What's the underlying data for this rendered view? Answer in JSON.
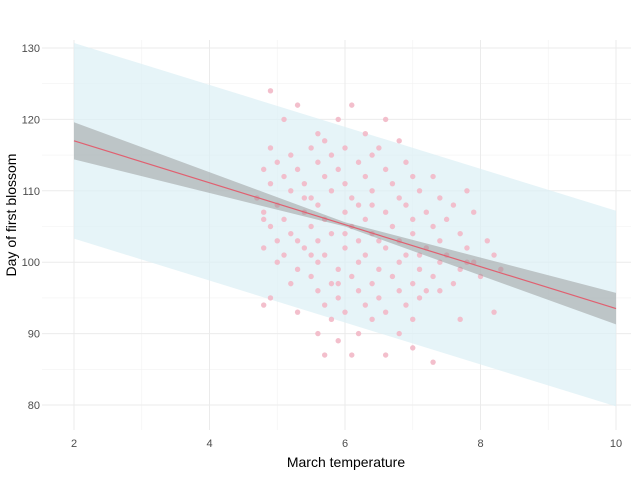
{
  "chart_data": {
    "type": "scatter",
    "title": "",
    "xlabel": "March temperature",
    "ylabel": "Day of first blossom",
    "xlim": [
      2,
      10
    ],
    "ylim": [
      79,
      131
    ],
    "x_ticks": [
      "2",
      "4",
      "6",
      "8",
      "10"
    ],
    "y_ticks": [
      "80",
      "90",
      "100",
      "110",
      "120",
      "130"
    ],
    "grid": true,
    "legend": "none",
    "fit_line": {
      "x": [
        2,
        10
      ],
      "y": [
        117,
        93.5
      ]
    },
    "confidence_band": {
      "x": [
        2,
        6,
        10
      ],
      "lower": [
        114.4,
        105.0,
        91.3
      ],
      "upper": [
        119.6,
        105.6,
        95.7
      ]
    },
    "prediction_band": {
      "x": [
        2,
        10
      ],
      "lower": [
        103.3,
        79.8
      ],
      "upper": [
        130.7,
        107.2
      ]
    },
    "points": [
      [
        4.9,
        124
      ],
      [
        5.3,
        122
      ],
      [
        6.1,
        122
      ],
      [
        5.1,
        120
      ],
      [
        5.9,
        120
      ],
      [
        6.6,
        120
      ],
      [
        5.6,
        118
      ],
      [
        6.3,
        118
      ],
      [
        5.7,
        117
      ],
      [
        6.8,
        117
      ],
      [
        4.9,
        116
      ],
      [
        5.5,
        116
      ],
      [
        6.0,
        116
      ],
      [
        6.5,
        116
      ],
      [
        5.2,
        115
      ],
      [
        5.8,
        115
      ],
      [
        6.4,
        115
      ],
      [
        5.0,
        114
      ],
      [
        5.6,
        114
      ],
      [
        6.2,
        114
      ],
      [
        6.9,
        114
      ],
      [
        4.8,
        113
      ],
      [
        5.3,
        113
      ],
      [
        5.9,
        113
      ],
      [
        6.6,
        113
      ],
      [
        5.1,
        112
      ],
      [
        5.7,
        112
      ],
      [
        6.3,
        112
      ],
      [
        7.0,
        112
      ],
      [
        7.3,
        112
      ],
      [
        4.9,
        111
      ],
      [
        5.4,
        111
      ],
      [
        6.0,
        111
      ],
      [
        6.7,
        111
      ],
      [
        5.2,
        110
      ],
      [
        5.8,
        110
      ],
      [
        6.4,
        110
      ],
      [
        7.1,
        110
      ],
      [
        7.8,
        110
      ],
      [
        4.7,
        109
      ],
      [
        5.5,
        109
      ],
      [
        6.1,
        109
      ],
      [
        6.8,
        109
      ],
      [
        7.4,
        109
      ],
      [
        5.0,
        108
      ],
      [
        5.6,
        108
      ],
      [
        6.2,
        108
      ],
      [
        6.9,
        108
      ],
      [
        7.6,
        108
      ],
      [
        4.8,
        107
      ],
      [
        5.4,
        107
      ],
      [
        6.0,
        107
      ],
      [
        6.6,
        107
      ],
      [
        7.2,
        107
      ],
      [
        7.9,
        107
      ],
      [
        5.1,
        106
      ],
      [
        5.7,
        106
      ],
      [
        6.3,
        106
      ],
      [
        7.0,
        106
      ],
      [
        7.5,
        106
      ],
      [
        4.9,
        105
      ],
      [
        5.5,
        105
      ],
      [
        6.1,
        105
      ],
      [
        6.7,
        105
      ],
      [
        7.3,
        105
      ],
      [
        5.2,
        104
      ],
      [
        5.8,
        104
      ],
      [
        6.4,
        104
      ],
      [
        7.0,
        104
      ],
      [
        7.7,
        104
      ],
      [
        5.0,
        103
      ],
      [
        5.6,
        103
      ],
      [
        6.2,
        103
      ],
      [
        6.8,
        103
      ],
      [
        7.4,
        103
      ],
      [
        8.1,
        103
      ],
      [
        4.8,
        102
      ],
      [
        5.4,
        102
      ],
      [
        6.0,
        102
      ],
      [
        6.6,
        102
      ],
      [
        7.2,
        102
      ],
      [
        7.8,
        102
      ],
      [
        5.1,
        101
      ],
      [
        5.7,
        101
      ],
      [
        6.3,
        101
      ],
      [
        6.9,
        101
      ],
      [
        7.5,
        101
      ],
      [
        8.2,
        101
      ],
      [
        5.0,
        100
      ],
      [
        5.6,
        100
      ],
      [
        6.2,
        100
      ],
      [
        6.8,
        100
      ],
      [
        7.4,
        100
      ],
      [
        7.9,
        100
      ],
      [
        5.3,
        99
      ],
      [
        5.9,
        99
      ],
      [
        6.5,
        99
      ],
      [
        7.1,
        99
      ],
      [
        7.7,
        99
      ],
      [
        8.3,
        99
      ],
      [
        5.5,
        98
      ],
      [
        6.1,
        98
      ],
      [
        6.7,
        98
      ],
      [
        7.3,
        98
      ],
      [
        8.0,
        98
      ],
      [
        5.2,
        97
      ],
      [
        5.8,
        97
      ],
      [
        6.4,
        97
      ],
      [
        7.0,
        97
      ],
      [
        7.6,
        97
      ],
      [
        5.6,
        96
      ],
      [
        6.2,
        96
      ],
      [
        6.8,
        96
      ],
      [
        7.4,
        96
      ],
      [
        4.9,
        95
      ],
      [
        5.9,
        95
      ],
      [
        6.5,
        95
      ],
      [
        7.1,
        95
      ],
      [
        4.8,
        94
      ],
      [
        5.7,
        94
      ],
      [
        6.3,
        94
      ],
      [
        6.9,
        94
      ],
      [
        5.3,
        93
      ],
      [
        6.0,
        93
      ],
      [
        6.6,
        93
      ],
      [
        7.7,
        92
      ],
      [
        5.8,
        92
      ],
      [
        6.4,
        92
      ],
      [
        7.0,
        92
      ],
      [
        5.6,
        90
      ],
      [
        6.2,
        90
      ],
      [
        6.8,
        90
      ],
      [
        5.9,
        89
      ],
      [
        7.0,
        88
      ],
      [
        5.7,
        87
      ],
      [
        6.1,
        87
      ],
      [
        6.6,
        87
      ],
      [
        7.3,
        86
      ],
      [
        4.8,
        106
      ],
      [
        5.3,
        103
      ],
      [
        5.9,
        97
      ],
      [
        6.5,
        103
      ],
      [
        7.2,
        96
      ],
      [
        7.8,
        100
      ],
      [
        8.2,
        93
      ],
      [
        5.5,
        101
      ],
      [
        6.4,
        108
      ],
      [
        7.1,
        101
      ],
      [
        5.4,
        109
      ],
      [
        6.0,
        104
      ]
    ]
  }
}
